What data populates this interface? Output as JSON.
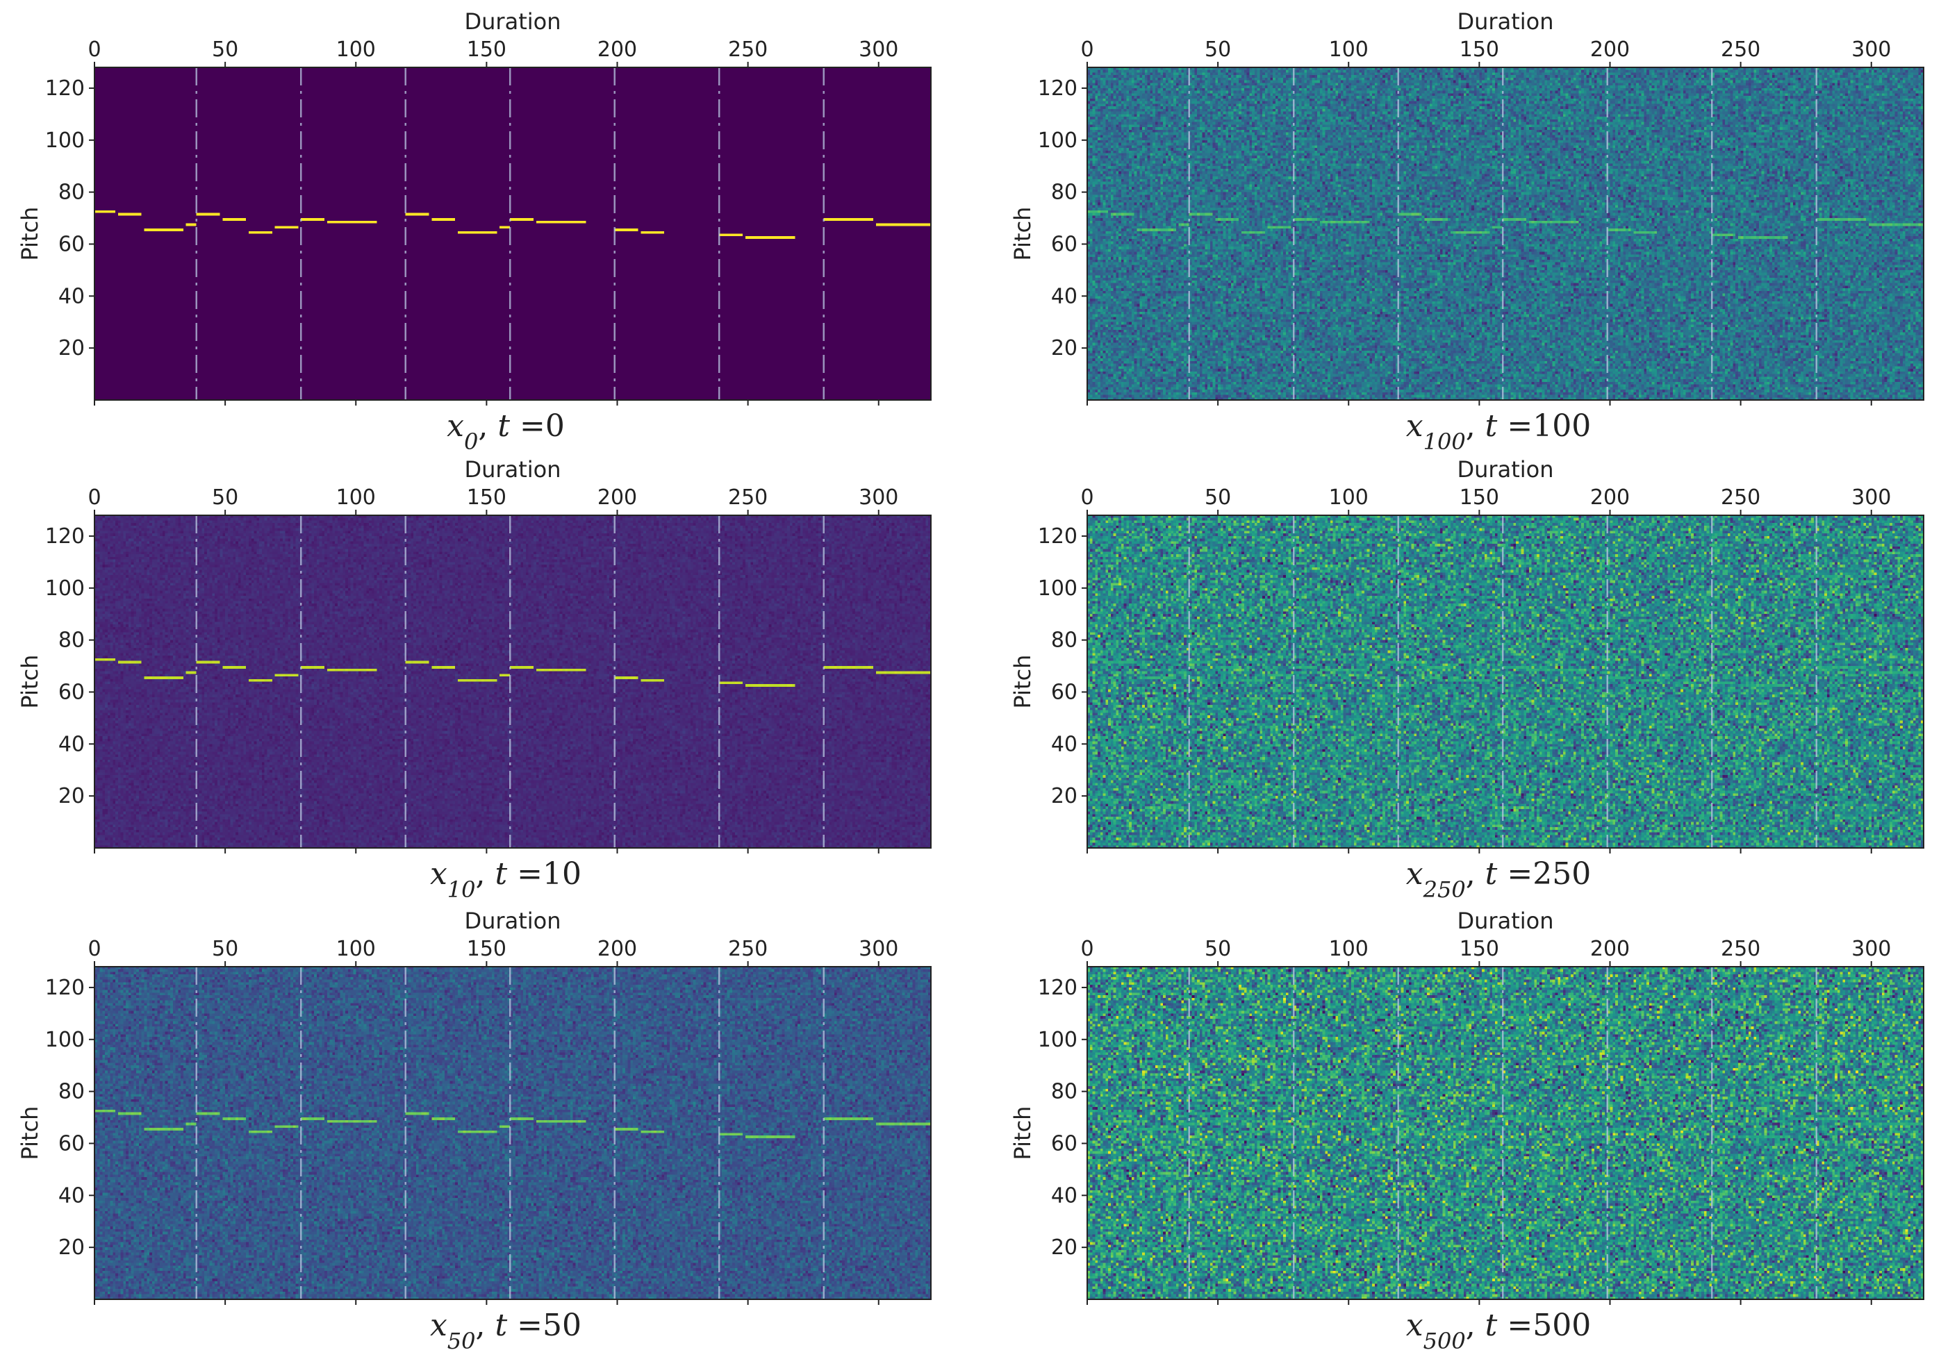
{
  "figure": {
    "description_note": "Six piano-roll heatmaps of a diffusion process x_t at different timesteps",
    "colormap": "viridis"
  },
  "chart_data": [
    {
      "type": "heatmap",
      "id": "x0",
      "caption": {
        "var": "x",
        "sub": "0",
        "tlabel": "t",
        "tvalue": "=0"
      },
      "xlabel": "Duration",
      "ylabel": "Pitch",
      "xlim": [
        0,
        320
      ],
      "ylim": [
        0,
        128
      ],
      "xticks": [
        0,
        50,
        100,
        150,
        200,
        250,
        300
      ],
      "yticks": [
        20,
        40,
        60,
        80,
        100,
        120
      ],
      "noise_level": 0.0,
      "background_value": 0.0
    },
    {
      "type": "heatmap",
      "id": "x100",
      "caption": {
        "var": "x",
        "sub": "100",
        "tlabel": "t",
        "tvalue": "=100"
      },
      "xlabel": "Duration",
      "ylabel": "Pitch",
      "xlim": [
        0,
        320
      ],
      "ylim": [
        0,
        128
      ],
      "xticks": [
        0,
        50,
        100,
        150,
        200,
        250,
        300
      ],
      "yticks": [
        20,
        40,
        60,
        80,
        100,
        120
      ],
      "noise_level": 0.55,
      "background_value": 0.38
    },
    {
      "type": "heatmap",
      "id": "x10",
      "caption": {
        "var": "x",
        "sub": "10",
        "tlabel": "t",
        "tvalue": "=10"
      },
      "xlabel": "Duration",
      "ylabel": "Pitch",
      "xlim": [
        0,
        320
      ],
      "ylim": [
        0,
        128
      ],
      "xticks": [
        0,
        50,
        100,
        150,
        200,
        250,
        300
      ],
      "yticks": [
        20,
        40,
        60,
        80,
        100,
        120
      ],
      "noise_level": 0.12,
      "background_value": 0.12
    },
    {
      "type": "heatmap",
      "id": "x250",
      "caption": {
        "var": "x",
        "sub": "250",
        "tlabel": "t",
        "tvalue": "=250"
      },
      "xlabel": "Duration",
      "ylabel": "Pitch",
      "xlim": [
        0,
        320
      ],
      "ylim": [
        0,
        128
      ],
      "xticks": [
        0,
        50,
        100,
        150,
        200,
        250,
        300
      ],
      "yticks": [
        20,
        40,
        60,
        80,
        100,
        120
      ],
      "noise_level": 0.85,
      "background_value": 0.48
    },
    {
      "type": "heatmap",
      "id": "x50",
      "caption": {
        "var": "x",
        "sub": "50",
        "tlabel": "t",
        "tvalue": "=50"
      },
      "xlabel": "Duration",
      "ylabel": "Pitch",
      "xlim": [
        0,
        320
      ],
      "ylim": [
        0,
        128
      ],
      "xticks": [
        0,
        50,
        100,
        150,
        200,
        250,
        300
      ],
      "yticks": [
        20,
        40,
        60,
        80,
        100,
        120
      ],
      "noise_level": 0.35,
      "background_value": 0.28
    },
    {
      "type": "heatmap",
      "id": "x500",
      "caption": {
        "var": "x",
        "sub": "500",
        "tlabel": "t",
        "tvalue": "=500"
      },
      "xlabel": "Duration",
      "ylabel": "Pitch",
      "xlim": [
        0,
        320
      ],
      "ylim": [
        0,
        128
      ],
      "xticks": [
        0,
        50,
        100,
        150,
        200,
        250,
        300
      ],
      "yticks": [
        20,
        40,
        60,
        80,
        100,
        120
      ],
      "noise_level": 0.95,
      "background_value": 0.5
    }
  ],
  "notes": [
    {
      "start": 0,
      "end": 8,
      "pitch": 72
    },
    {
      "start": 9,
      "end": 18,
      "pitch": 71
    },
    {
      "start": 19,
      "end": 34,
      "pitch": 65
    },
    {
      "start": 35,
      "end": 39,
      "pitch": 67
    },
    {
      "start": 39,
      "end": 48,
      "pitch": 71
    },
    {
      "start": 49,
      "end": 58,
      "pitch": 69
    },
    {
      "start": 59,
      "end": 68,
      "pitch": 64
    },
    {
      "start": 69,
      "end": 78,
      "pitch": 66
    },
    {
      "start": 79,
      "end": 88,
      "pitch": 69
    },
    {
      "start": 89,
      "end": 108,
      "pitch": 68
    },
    {
      "start": 119,
      "end": 128,
      "pitch": 71
    },
    {
      "start": 129,
      "end": 138,
      "pitch": 69
    },
    {
      "start": 139,
      "end": 154,
      "pitch": 64
    },
    {
      "start": 155,
      "end": 159,
      "pitch": 66
    },
    {
      "start": 159,
      "end": 168,
      "pitch": 69
    },
    {
      "start": 169,
      "end": 188,
      "pitch": 68
    },
    {
      "start": 199,
      "end": 208,
      "pitch": 65
    },
    {
      "start": 209,
      "end": 218,
      "pitch": 64
    },
    {
      "start": 239,
      "end": 248,
      "pitch": 63
    },
    {
      "start": 249,
      "end": 268,
      "pitch": 62
    },
    {
      "start": 279,
      "end": 298,
      "pitch": 69
    },
    {
      "start": 299,
      "end": 320,
      "pitch": 67
    }
  ],
  "bar_lines": [
    39,
    79,
    119,
    159,
    199,
    239,
    279
  ]
}
